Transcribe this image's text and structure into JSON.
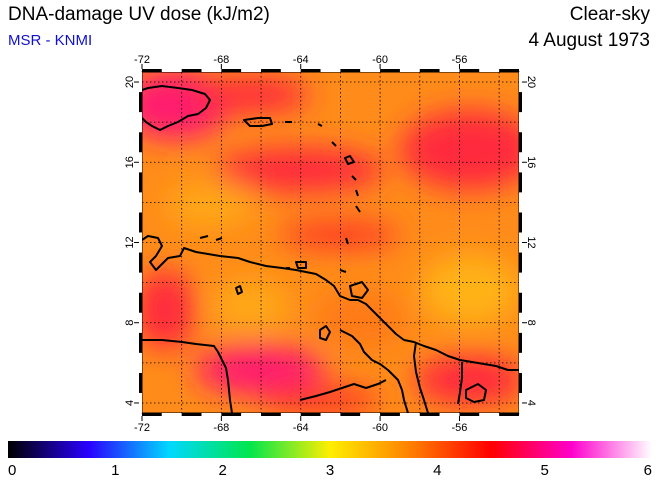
{
  "header": {
    "title": "DNA-damage UV dose (kJ/m2)",
    "source": "MSR - KNMI",
    "condition": "Clear-sky",
    "date": "4 August 1973"
  },
  "map": {
    "lon_range": [
      -72,
      -53
    ],
    "lat_range": [
      3.5,
      20.5
    ],
    "lon_ticks": [
      -72,
      -68,
      -64,
      -60,
      -56
    ],
    "lat_ticks": [
      4,
      8,
      12,
      16,
      20
    ],
    "lon_labels": [
      "-72",
      "-68",
      "-64",
      "-60",
      "-56"
    ],
    "lat_labels": [
      "4",
      "8",
      "12",
      "16",
      "20"
    ],
    "gridlines": true,
    "colors": {
      "base": "#ff8c1a",
      "high": "#ff2a3c",
      "peak": "#ff1a6e",
      "low": "#ffb214",
      "coast": "#000000"
    }
  },
  "colorbar": {
    "min": 0,
    "max": 6,
    "tick_values": [
      0,
      1,
      2,
      3,
      4,
      5,
      6
    ],
    "tick_labels": [
      "0",
      "1",
      "2",
      "3",
      "4",
      "5",
      "6"
    ],
    "stops": [
      "#000000",
      "#2a00ff",
      "#00d8ff",
      "#00e64d",
      "#ffee00",
      "#ff8000",
      "#ff0000",
      "#ff00cc",
      "#ffffff"
    ]
  }
}
